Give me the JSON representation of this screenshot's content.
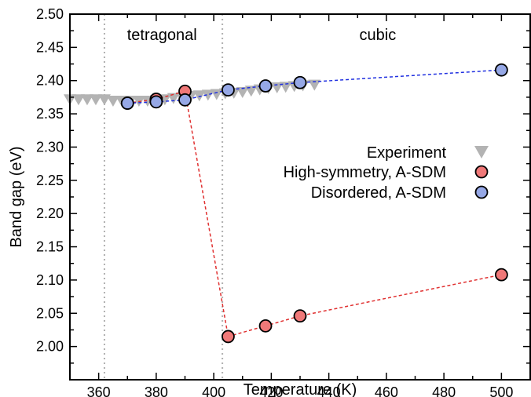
{
  "chart_data": {
    "type": "scatter",
    "title": "",
    "xlabel": "Temperature (K)",
    "ylabel": "Band gap (eV)",
    "xlim": [
      350,
      510
    ],
    "ylim": [
      1.95,
      2.5
    ],
    "xticks": [
      360,
      380,
      400,
      420,
      440,
      460,
      480,
      500
    ],
    "yticks": [
      2.0,
      2.05,
      2.1,
      2.15,
      2.2,
      2.25,
      2.3,
      2.35,
      2.4,
      2.45,
      2.5
    ],
    "grid": false,
    "legend": "center-right",
    "phase_boundaries": [
      362,
      403
    ],
    "phases": [
      {
        "label": "tetragonal",
        "x_center": 382
      },
      {
        "label": "cubic",
        "x_center": 457
      }
    ],
    "series": [
      {
        "name": "Experiment",
        "marker": "down-triangle",
        "color": "#b3b3b3",
        "x": [
          350,
          353,
          356,
          359,
          362,
          365,
          368,
          371,
          374,
          377,
          380,
          383,
          386,
          389,
          392,
          395,
          398,
          401,
          404,
          407,
          410,
          413,
          416,
          419,
          422,
          425,
          428,
          431,
          435
        ],
        "y": [
          2.371,
          2.371,
          2.371,
          2.371,
          2.371,
          2.369,
          2.369,
          2.369,
          2.369,
          2.369,
          2.37,
          2.371,
          2.373,
          2.374,
          2.376,
          2.377,
          2.378,
          2.379,
          2.38,
          2.381,
          2.382,
          2.384,
          2.386,
          2.388,
          2.389,
          2.39,
          2.391,
          2.392,
          2.393
        ]
      },
      {
        "name": "High-symmetry, A-SDM",
        "marker": "circle",
        "color": "#f07878",
        "line_color": "#e03030",
        "x": [
          370,
          380,
          390,
          405,
          418,
          430,
          500
        ],
        "y": [
          2.366,
          2.372,
          2.384,
          2.015,
          2.031,
          2.046,
          2.108
        ]
      },
      {
        "name": "Disordered, A-SDM",
        "marker": "circle",
        "color": "#96a8e6",
        "line_color": "#2030e0",
        "x": [
          370,
          380,
          390,
          405,
          418,
          430,
          500
        ],
        "y": [
          2.366,
          2.368,
          2.371,
          2.386,
          2.392,
          2.397,
          2.416
        ]
      }
    ]
  }
}
